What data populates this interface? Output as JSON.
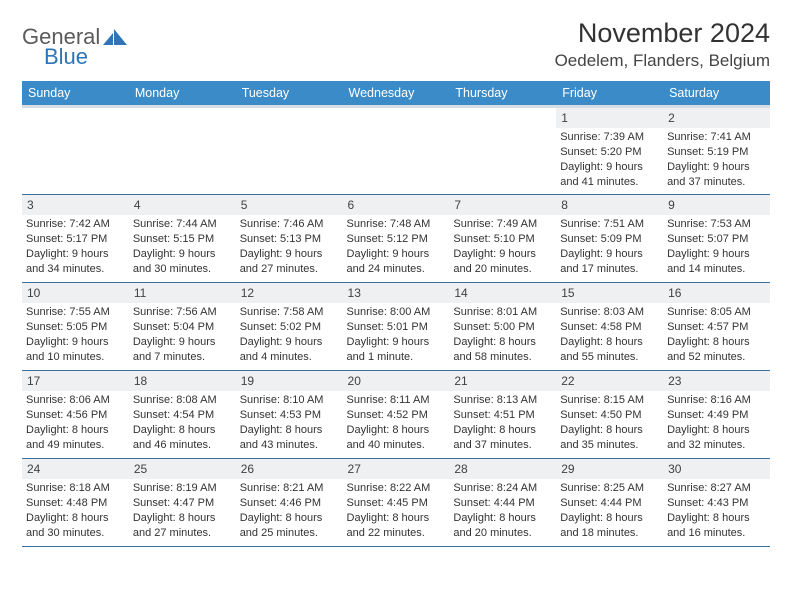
{
  "logo": {
    "text1": "General",
    "text2": "Blue"
  },
  "title": "November 2024",
  "location": "Oedelem, Flanders, Belgium",
  "colors": {
    "header_bg": "#3b8bc8",
    "header_text": "#ffffff",
    "day_strip_bg": "#eef0f2",
    "cell_border": "#3b6fa0",
    "logo_blue": "#2f75b5",
    "text": "#333333"
  },
  "weekdays": [
    "Sunday",
    "Monday",
    "Tuesday",
    "Wednesday",
    "Thursday",
    "Friday",
    "Saturday"
  ],
  "weeks": [
    [
      {
        "empty": true
      },
      {
        "empty": true
      },
      {
        "empty": true
      },
      {
        "empty": true
      },
      {
        "empty": true
      },
      {
        "day": "1",
        "sunrise": "Sunrise: 7:39 AM",
        "sunset": "Sunset: 5:20 PM",
        "dl1": "Daylight: 9 hours",
        "dl2": "and 41 minutes."
      },
      {
        "day": "2",
        "sunrise": "Sunrise: 7:41 AM",
        "sunset": "Sunset: 5:19 PM",
        "dl1": "Daylight: 9 hours",
        "dl2": "and 37 minutes."
      }
    ],
    [
      {
        "day": "3",
        "sunrise": "Sunrise: 7:42 AM",
        "sunset": "Sunset: 5:17 PM",
        "dl1": "Daylight: 9 hours",
        "dl2": "and 34 minutes."
      },
      {
        "day": "4",
        "sunrise": "Sunrise: 7:44 AM",
        "sunset": "Sunset: 5:15 PM",
        "dl1": "Daylight: 9 hours",
        "dl2": "and 30 minutes."
      },
      {
        "day": "5",
        "sunrise": "Sunrise: 7:46 AM",
        "sunset": "Sunset: 5:13 PM",
        "dl1": "Daylight: 9 hours",
        "dl2": "and 27 minutes."
      },
      {
        "day": "6",
        "sunrise": "Sunrise: 7:48 AM",
        "sunset": "Sunset: 5:12 PM",
        "dl1": "Daylight: 9 hours",
        "dl2": "and 24 minutes."
      },
      {
        "day": "7",
        "sunrise": "Sunrise: 7:49 AM",
        "sunset": "Sunset: 5:10 PM",
        "dl1": "Daylight: 9 hours",
        "dl2": "and 20 minutes."
      },
      {
        "day": "8",
        "sunrise": "Sunrise: 7:51 AM",
        "sunset": "Sunset: 5:09 PM",
        "dl1": "Daylight: 9 hours",
        "dl2": "and 17 minutes."
      },
      {
        "day": "9",
        "sunrise": "Sunrise: 7:53 AM",
        "sunset": "Sunset: 5:07 PM",
        "dl1": "Daylight: 9 hours",
        "dl2": "and 14 minutes."
      }
    ],
    [
      {
        "day": "10",
        "sunrise": "Sunrise: 7:55 AM",
        "sunset": "Sunset: 5:05 PM",
        "dl1": "Daylight: 9 hours",
        "dl2": "and 10 minutes."
      },
      {
        "day": "11",
        "sunrise": "Sunrise: 7:56 AM",
        "sunset": "Sunset: 5:04 PM",
        "dl1": "Daylight: 9 hours",
        "dl2": "and 7 minutes."
      },
      {
        "day": "12",
        "sunrise": "Sunrise: 7:58 AM",
        "sunset": "Sunset: 5:02 PM",
        "dl1": "Daylight: 9 hours",
        "dl2": "and 4 minutes."
      },
      {
        "day": "13",
        "sunrise": "Sunrise: 8:00 AM",
        "sunset": "Sunset: 5:01 PM",
        "dl1": "Daylight: 9 hours",
        "dl2": "and 1 minute."
      },
      {
        "day": "14",
        "sunrise": "Sunrise: 8:01 AM",
        "sunset": "Sunset: 5:00 PM",
        "dl1": "Daylight: 8 hours",
        "dl2": "and 58 minutes."
      },
      {
        "day": "15",
        "sunrise": "Sunrise: 8:03 AM",
        "sunset": "Sunset: 4:58 PM",
        "dl1": "Daylight: 8 hours",
        "dl2": "and 55 minutes."
      },
      {
        "day": "16",
        "sunrise": "Sunrise: 8:05 AM",
        "sunset": "Sunset: 4:57 PM",
        "dl1": "Daylight: 8 hours",
        "dl2": "and 52 minutes."
      }
    ],
    [
      {
        "day": "17",
        "sunrise": "Sunrise: 8:06 AM",
        "sunset": "Sunset: 4:56 PM",
        "dl1": "Daylight: 8 hours",
        "dl2": "and 49 minutes."
      },
      {
        "day": "18",
        "sunrise": "Sunrise: 8:08 AM",
        "sunset": "Sunset: 4:54 PM",
        "dl1": "Daylight: 8 hours",
        "dl2": "and 46 minutes."
      },
      {
        "day": "19",
        "sunrise": "Sunrise: 8:10 AM",
        "sunset": "Sunset: 4:53 PM",
        "dl1": "Daylight: 8 hours",
        "dl2": "and 43 minutes."
      },
      {
        "day": "20",
        "sunrise": "Sunrise: 8:11 AM",
        "sunset": "Sunset: 4:52 PM",
        "dl1": "Daylight: 8 hours",
        "dl2": "and 40 minutes."
      },
      {
        "day": "21",
        "sunrise": "Sunrise: 8:13 AM",
        "sunset": "Sunset: 4:51 PM",
        "dl1": "Daylight: 8 hours",
        "dl2": "and 37 minutes."
      },
      {
        "day": "22",
        "sunrise": "Sunrise: 8:15 AM",
        "sunset": "Sunset: 4:50 PM",
        "dl1": "Daylight: 8 hours",
        "dl2": "and 35 minutes."
      },
      {
        "day": "23",
        "sunrise": "Sunrise: 8:16 AM",
        "sunset": "Sunset: 4:49 PM",
        "dl1": "Daylight: 8 hours",
        "dl2": "and 32 minutes."
      }
    ],
    [
      {
        "day": "24",
        "sunrise": "Sunrise: 8:18 AM",
        "sunset": "Sunset: 4:48 PM",
        "dl1": "Daylight: 8 hours",
        "dl2": "and 30 minutes."
      },
      {
        "day": "25",
        "sunrise": "Sunrise: 8:19 AM",
        "sunset": "Sunset: 4:47 PM",
        "dl1": "Daylight: 8 hours",
        "dl2": "and 27 minutes."
      },
      {
        "day": "26",
        "sunrise": "Sunrise: 8:21 AM",
        "sunset": "Sunset: 4:46 PM",
        "dl1": "Daylight: 8 hours",
        "dl2": "and 25 minutes."
      },
      {
        "day": "27",
        "sunrise": "Sunrise: 8:22 AM",
        "sunset": "Sunset: 4:45 PM",
        "dl1": "Daylight: 8 hours",
        "dl2": "and 22 minutes."
      },
      {
        "day": "28",
        "sunrise": "Sunrise: 8:24 AM",
        "sunset": "Sunset: 4:44 PM",
        "dl1": "Daylight: 8 hours",
        "dl2": "and 20 minutes."
      },
      {
        "day": "29",
        "sunrise": "Sunrise: 8:25 AM",
        "sunset": "Sunset: 4:44 PM",
        "dl1": "Daylight: 8 hours",
        "dl2": "and 18 minutes."
      },
      {
        "day": "30",
        "sunrise": "Sunrise: 8:27 AM",
        "sunset": "Sunset: 4:43 PM",
        "dl1": "Daylight: 8 hours",
        "dl2": "and 16 minutes."
      }
    ]
  ]
}
